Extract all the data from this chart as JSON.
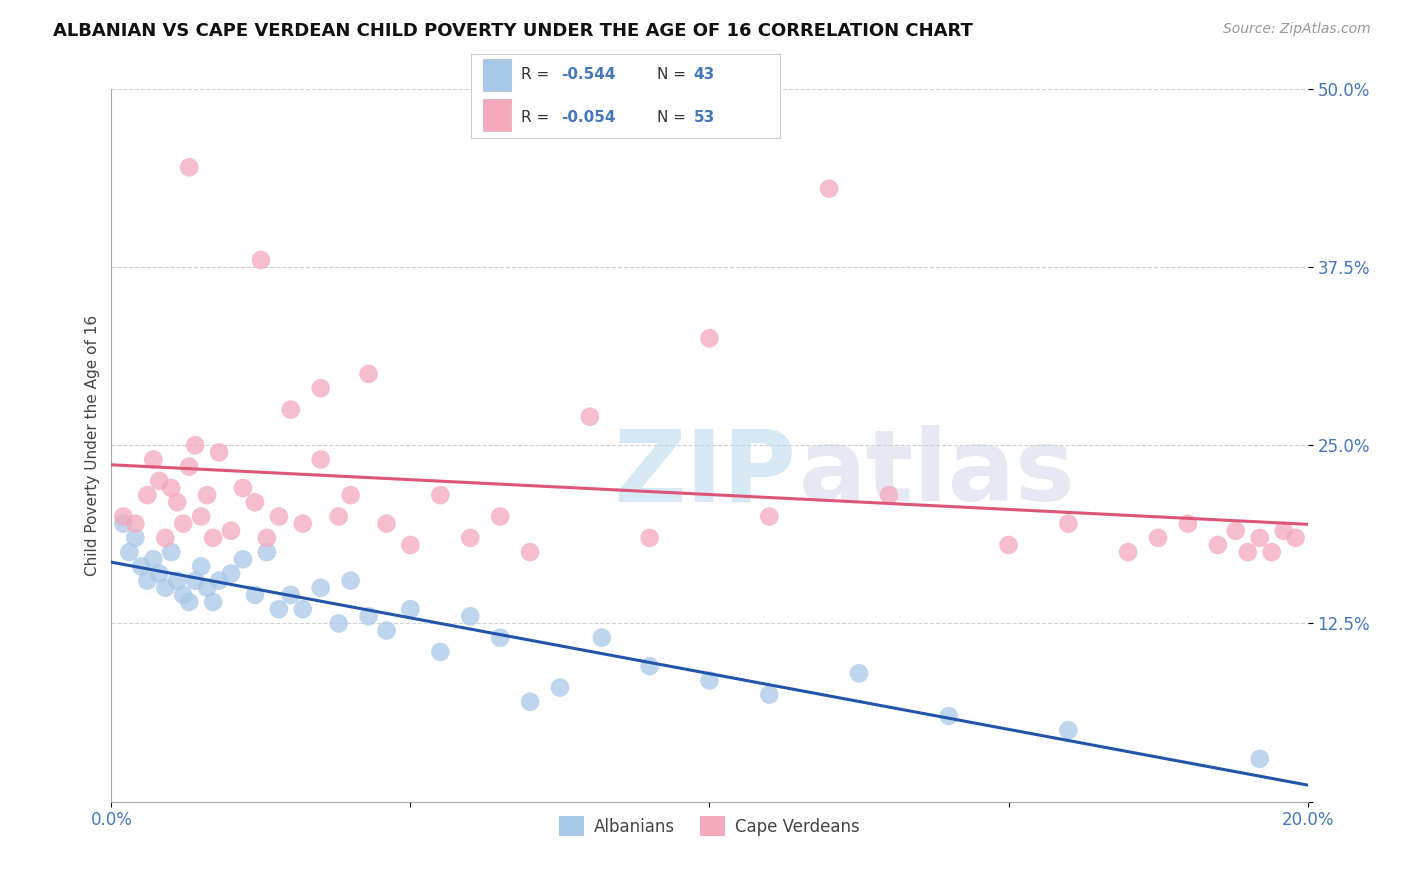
{
  "title": "ALBANIAN VS CAPE VERDEAN CHILD POVERTY UNDER THE AGE OF 16 CORRELATION CHART",
  "source": "Source: ZipAtlas.com",
  "ylabel": "Child Poverty Under the Age of 16",
  "xlim": [
    0.0,
    0.2
  ],
  "ylim": [
    0.0,
    0.5
  ],
  "xticks": [
    0.0,
    0.05,
    0.1,
    0.15,
    0.2
  ],
  "xticklabels": [
    "0.0%",
    "",
    "",
    "",
    "20.0%"
  ],
  "yticks": [
    0.0,
    0.125,
    0.25,
    0.375,
    0.5
  ],
  "yticklabels": [
    "",
    "12.5%",
    "25.0%",
    "37.5%",
    "50.0%"
  ],
  "grid_color": "#cccccc",
  "background_color": "#ffffff",
  "albanians_color": "#a8c8e8",
  "cape_verdeans_color": "#f4a8bc",
  "albanians_line_color": "#2255aa",
  "cape_verdeans_line_color": "#dd5577",
  "albanians_R": "-0.544",
  "albanians_N": "43",
  "cape_verdeans_R": "-0.054",
  "cape_verdeans_N": "53",
  "albanians_x": [
    0.002,
    0.003,
    0.004,
    0.005,
    0.006,
    0.007,
    0.008,
    0.009,
    0.01,
    0.011,
    0.012,
    0.013,
    0.014,
    0.015,
    0.016,
    0.017,
    0.018,
    0.02,
    0.022,
    0.024,
    0.026,
    0.028,
    0.03,
    0.032,
    0.035,
    0.038,
    0.04,
    0.043,
    0.046,
    0.05,
    0.055,
    0.06,
    0.065,
    0.07,
    0.075,
    0.082,
    0.09,
    0.1,
    0.11,
    0.125,
    0.14,
    0.16,
    0.192
  ],
  "albanians_y": [
    0.195,
    0.175,
    0.185,
    0.165,
    0.155,
    0.17,
    0.16,
    0.15,
    0.175,
    0.155,
    0.145,
    0.14,
    0.155,
    0.165,
    0.15,
    0.14,
    0.155,
    0.16,
    0.17,
    0.145,
    0.175,
    0.135,
    0.145,
    0.135,
    0.15,
    0.125,
    0.155,
    0.13,
    0.12,
    0.135,
    0.105,
    0.13,
    0.115,
    0.07,
    0.08,
    0.115,
    0.095,
    0.085,
    0.075,
    0.09,
    0.06,
    0.05,
    0.03
  ],
  "cape_verdeans_x": [
    0.002,
    0.004,
    0.006,
    0.007,
    0.008,
    0.009,
    0.01,
    0.011,
    0.012,
    0.013,
    0.014,
    0.015,
    0.016,
    0.017,
    0.018,
    0.02,
    0.022,
    0.024,
    0.026,
    0.028,
    0.03,
    0.032,
    0.035,
    0.038,
    0.04,
    0.043,
    0.046,
    0.05,
    0.055,
    0.06,
    0.065,
    0.07,
    0.08,
    0.09,
    0.1,
    0.11,
    0.12,
    0.13,
    0.15,
    0.16,
    0.17,
    0.175,
    0.18,
    0.185,
    0.188,
    0.19,
    0.192,
    0.194,
    0.196,
    0.198,
    0.013,
    0.025,
    0.035
  ],
  "cape_verdeans_y": [
    0.2,
    0.195,
    0.215,
    0.24,
    0.225,
    0.185,
    0.22,
    0.21,
    0.195,
    0.235,
    0.25,
    0.2,
    0.215,
    0.185,
    0.245,
    0.19,
    0.22,
    0.21,
    0.185,
    0.2,
    0.275,
    0.195,
    0.24,
    0.2,
    0.215,
    0.3,
    0.195,
    0.18,
    0.215,
    0.185,
    0.2,
    0.175,
    0.27,
    0.185,
    0.325,
    0.2,
    0.43,
    0.215,
    0.18,
    0.195,
    0.175,
    0.185,
    0.195,
    0.18,
    0.19,
    0.175,
    0.185,
    0.175,
    0.19,
    0.185,
    0.445,
    0.38,
    0.29
  ],
  "watermark_top": "ZIP",
  "watermark_bot": "atlas",
  "title_fontsize": 13,
  "axis_label_fontsize": 11,
  "tick_fontsize": 12,
  "legend_fontsize": 12,
  "source_fontsize": 10
}
